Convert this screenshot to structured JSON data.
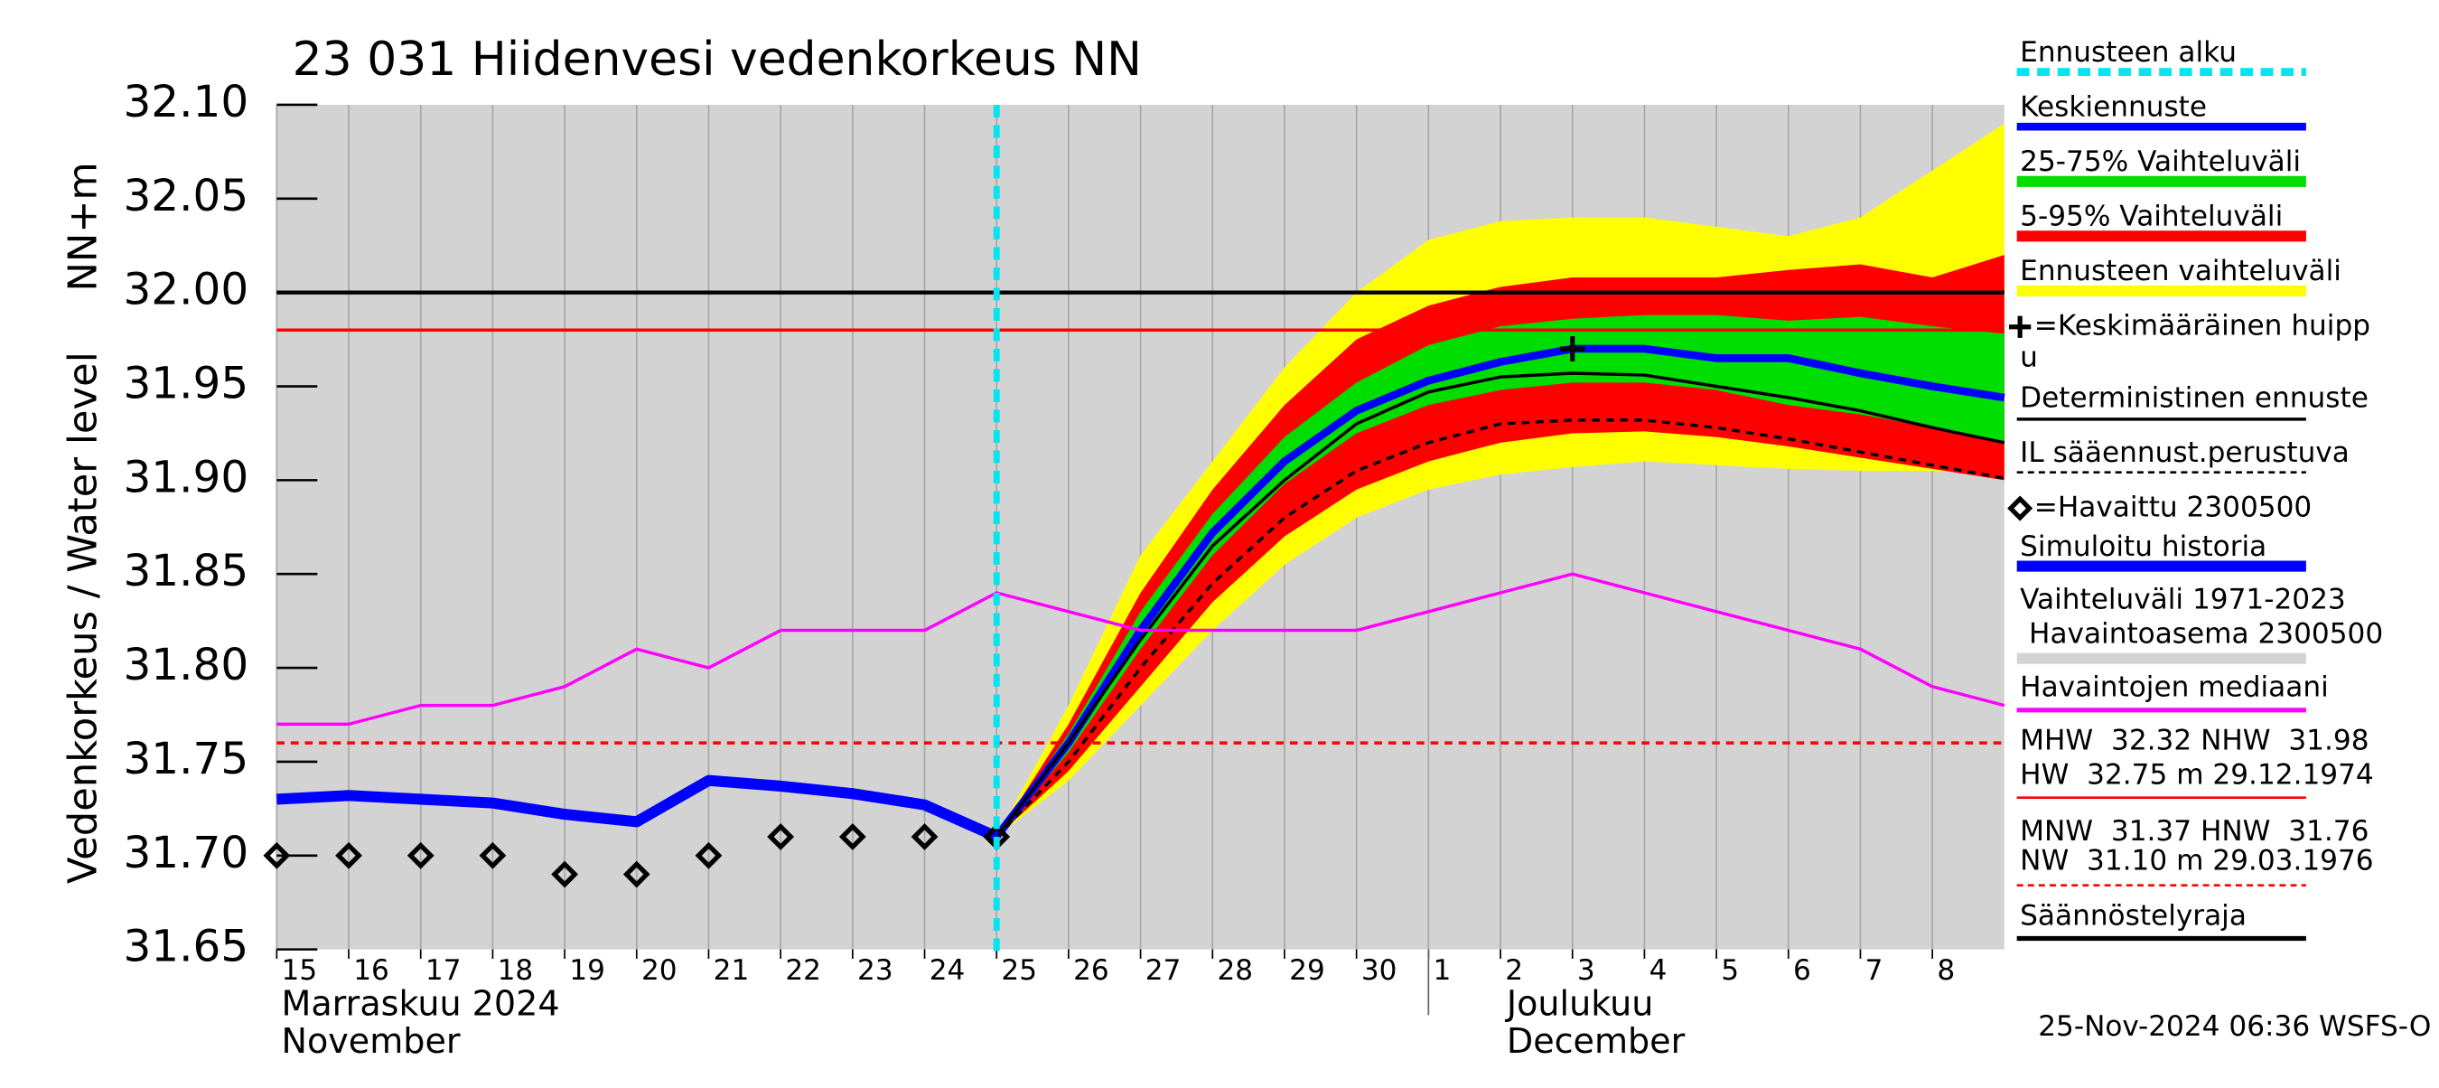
{
  "chart_data": {
    "type": "line",
    "title": "23 031 Hiidenvesi vedenkorkeus NN",
    "y_label": "Vedenkorkeus / Water level",
    "y_unit": "NN+m",
    "xlim": [
      0,
      24
    ],
    "xticks": [
      {
        "value": 0,
        "label": "15"
      },
      {
        "value": 1,
        "label": "16"
      },
      {
        "value": 2,
        "label": "17"
      },
      {
        "value": 3,
        "label": "18"
      },
      {
        "value": 4,
        "label": "19"
      },
      {
        "value": 5,
        "label": "20"
      },
      {
        "value": 6,
        "label": "21"
      },
      {
        "value": 7,
        "label": "22"
      },
      {
        "value": 8,
        "label": "23"
      },
      {
        "value": 9,
        "label": "24"
      },
      {
        "value": 10,
        "label": "25"
      },
      {
        "value": 11,
        "label": "26"
      },
      {
        "value": 12,
        "label": "27"
      },
      {
        "value": 13,
        "label": "28"
      },
      {
        "value": 14,
        "label": "29"
      },
      {
        "value": 15,
        "label": "30"
      },
      {
        "value": 16,
        "label": "1"
      },
      {
        "value": 17,
        "label": "2"
      },
      {
        "value": 18,
        "label": "3"
      },
      {
        "value": 19,
        "label": "4"
      },
      {
        "value": 20,
        "label": "5"
      },
      {
        "value": 21,
        "label": "6"
      },
      {
        "value": 22,
        "label": "7"
      },
      {
        "value": 23,
        "label": "8"
      }
    ],
    "months": [
      {
        "value": 0,
        "label": [
          "Marraskuu 2024",
          "November"
        ]
      },
      {
        "value": 16,
        "label": [
          "Joulukuu",
          "December"
        ]
      }
    ],
    "ylim": [
      31.65,
      32.1
    ],
    "yticks": [
      31.65,
      {
        "value": 31.7,
        "label": "31.70"
      },
      31.75,
      {
        "value": 31.8,
        "label": "31.80"
      },
      31.85,
      {
        "value": 31.9,
        "label": "31.90"
      },
      31.95,
      {
        "value": 32.0,
        "label": "32.00"
      },
      32.05,
      {
        "value": 32.1,
        "label": "32.10"
      }
    ],
    "timestamp": "25-Nov-2024 06:36 WSFS-O",
    "series": [
      {
        "name": "Ennusteen alku",
        "color": "#00e5ee",
        "style": "vline",
        "vline": 10
      },
      {
        "name": "Keskiennuste",
        "color": "#0000ff",
        "style": "line",
        "weight": "medium",
        "x": [
          10,
          11,
          12,
          13,
          14,
          15,
          16,
          17,
          18,
          19,
          20,
          21,
          22,
          23,
          24
        ],
        "values": [
          31.71,
          31.76,
          31.82,
          31.872,
          31.91,
          31.937,
          31.953,
          31.963,
          31.97,
          31.97,
          31.965,
          31.965,
          31.957,
          31.95,
          31.944
        ]
      },
      {
        "name": "25-75% Vaihteluväli",
        "color": "#00dd00",
        "style": "band",
        "x": [
          10,
          11,
          12,
          13,
          14,
          15,
          16,
          17,
          18,
          19,
          20,
          21,
          22,
          23,
          24
        ],
        "low": [
          31.71,
          31.755,
          31.81,
          31.86,
          31.898,
          31.925,
          31.94,
          31.948,
          31.952,
          31.952,
          31.948,
          31.94,
          31.935,
          31.928,
          31.92
        ],
        "high": [
          31.71,
          31.765,
          31.83,
          31.882,
          31.923,
          31.952,
          31.972,
          31.982,
          31.986,
          31.988,
          31.988,
          31.985,
          31.987,
          31.982,
          31.978
        ]
      },
      {
        "name": "5-95% Vaihteluväli",
        "color": "#ff0000",
        "style": "band",
        "x": [
          10,
          11,
          12,
          13,
          14,
          15,
          16,
          17,
          18,
          19,
          20,
          21,
          22,
          23,
          24
        ],
        "low": [
          31.71,
          31.745,
          31.79,
          31.835,
          31.87,
          31.895,
          31.91,
          31.92,
          31.925,
          31.926,
          31.923,
          31.918,
          31.912,
          31.906,
          31.9
        ],
        "high": [
          31.71,
          31.77,
          31.84,
          31.895,
          31.94,
          31.975,
          31.993,
          32.003,
          32.008,
          32.008,
          32.008,
          32.012,
          32.015,
          32.008,
          32.02
        ]
      },
      {
        "name": "Ennusteen vaihteluväli",
        "color": "#ffff00",
        "style": "band",
        "x": [
          10,
          11,
          12,
          13,
          14,
          15,
          16,
          17,
          18,
          19,
          20,
          21,
          22,
          23,
          24
        ],
        "low": [
          31.71,
          31.74,
          31.78,
          31.82,
          31.855,
          31.88,
          31.895,
          31.903,
          31.907,
          31.91,
          31.908,
          31.906,
          31.905,
          31.905,
          31.903
        ],
        "high": [
          31.71,
          31.78,
          31.86,
          31.91,
          31.96,
          32.0,
          32.028,
          32.038,
          32.04,
          32.04,
          32.035,
          32.03,
          32.04,
          32.065,
          32.09
        ]
      },
      {
        "name": [
          "=Keskimääräinen huipp",
          "u"
        ],
        "color": "#000000",
        "style": "plus",
        "x": [
          18
        ],
        "values": [
          31.97
        ]
      },
      {
        "name": "Deterministinen ennuste",
        "color": "#000000",
        "style": "line",
        "weight": "thin",
        "x": [
          10,
          11,
          12,
          13,
          14,
          15,
          16,
          17,
          18,
          19,
          20,
          21,
          22,
          23,
          24
        ],
        "values": [
          31.71,
          31.76,
          31.815,
          31.865,
          31.9,
          31.93,
          31.947,
          31.955,
          31.957,
          31.956,
          31.95,
          31.944,
          31.937,
          31.928,
          31.92
        ]
      },
      {
        "name": "IL sääennust.perustuva",
        "color": "#000000",
        "style": "dashed",
        "x": [
          10,
          11,
          12,
          13,
          14,
          15,
          16,
          17,
          18,
          19,
          20,
          21,
          22,
          23,
          24
        ],
        "values": [
          31.71,
          31.75,
          31.8,
          31.845,
          31.88,
          31.905,
          31.92,
          31.93,
          31.932,
          31.932,
          31.928,
          31.922,
          31.915,
          31.908,
          31.901
        ]
      },
      {
        "name": "=Havaittu 2300500",
        "color": "#000000",
        "style": "diamond",
        "x": [
          0,
          1,
          2,
          3,
          4,
          5,
          6,
          7,
          8,
          9,
          10
        ],
        "values": [
          31.7,
          31.7,
          31.7,
          31.7,
          31.69,
          31.69,
          31.7,
          31.71,
          31.71,
          31.71,
          31.71
        ]
      },
      {
        "name": "Simuloitu historia",
        "color": "#0000ff",
        "style": "line",
        "weight": "bold",
        "x": [
          0,
          1,
          2,
          3,
          4,
          5,
          6,
          7,
          8,
          9,
          10
        ],
        "values": [
          31.73,
          31.732,
          31.73,
          31.728,
          31.722,
          31.718,
          31.74,
          31.737,
          31.733,
          31.727,
          31.71
        ]
      },
      {
        "name": [
          "Vaihteluväli 1971-2023",
          " Havaintoasema 2300500"
        ],
        "color": "#d3d3d3",
        "style": "background"
      },
      {
        "name": "Havaintojen mediaani",
        "color": "#ff00ff",
        "style": "line",
        "weight": "thin",
        "x": [
          0,
          1,
          2,
          3,
          4,
          5,
          6,
          7,
          8,
          9,
          10,
          11,
          12,
          13,
          14,
          15,
          16,
          17,
          18,
          19,
          20,
          21,
          22,
          23,
          24
        ],
        "values": [
          31.77,
          31.77,
          31.78,
          31.78,
          31.79,
          31.81,
          31.8,
          31.82,
          31.82,
          31.82,
          31.84,
          31.83,
          31.82,
          31.82,
          31.82,
          31.82,
          31.83,
          31.84,
          31.85,
          31.84,
          31.83,
          31.82,
          31.81,
          31.79,
          31.78
        ]
      },
      {
        "name": [
          "MHW  32.32 NHW  31.98",
          "HW  32.75 m 29.12.1974"
        ],
        "color": "#ff0000",
        "style": "hline",
        "hline": 31.98
      },
      {
        "name": [
          "MNW  31.37 HNW  31.76",
          "NW  31.10 m 29.03.1976"
        ],
        "color": "#ff0000",
        "style": "hline-dashed",
        "hline": 31.76
      },
      {
        "name": "Säännöstelyraja",
        "color": "#000000",
        "style": "hline",
        "hline": 32.0
      }
    ]
  }
}
